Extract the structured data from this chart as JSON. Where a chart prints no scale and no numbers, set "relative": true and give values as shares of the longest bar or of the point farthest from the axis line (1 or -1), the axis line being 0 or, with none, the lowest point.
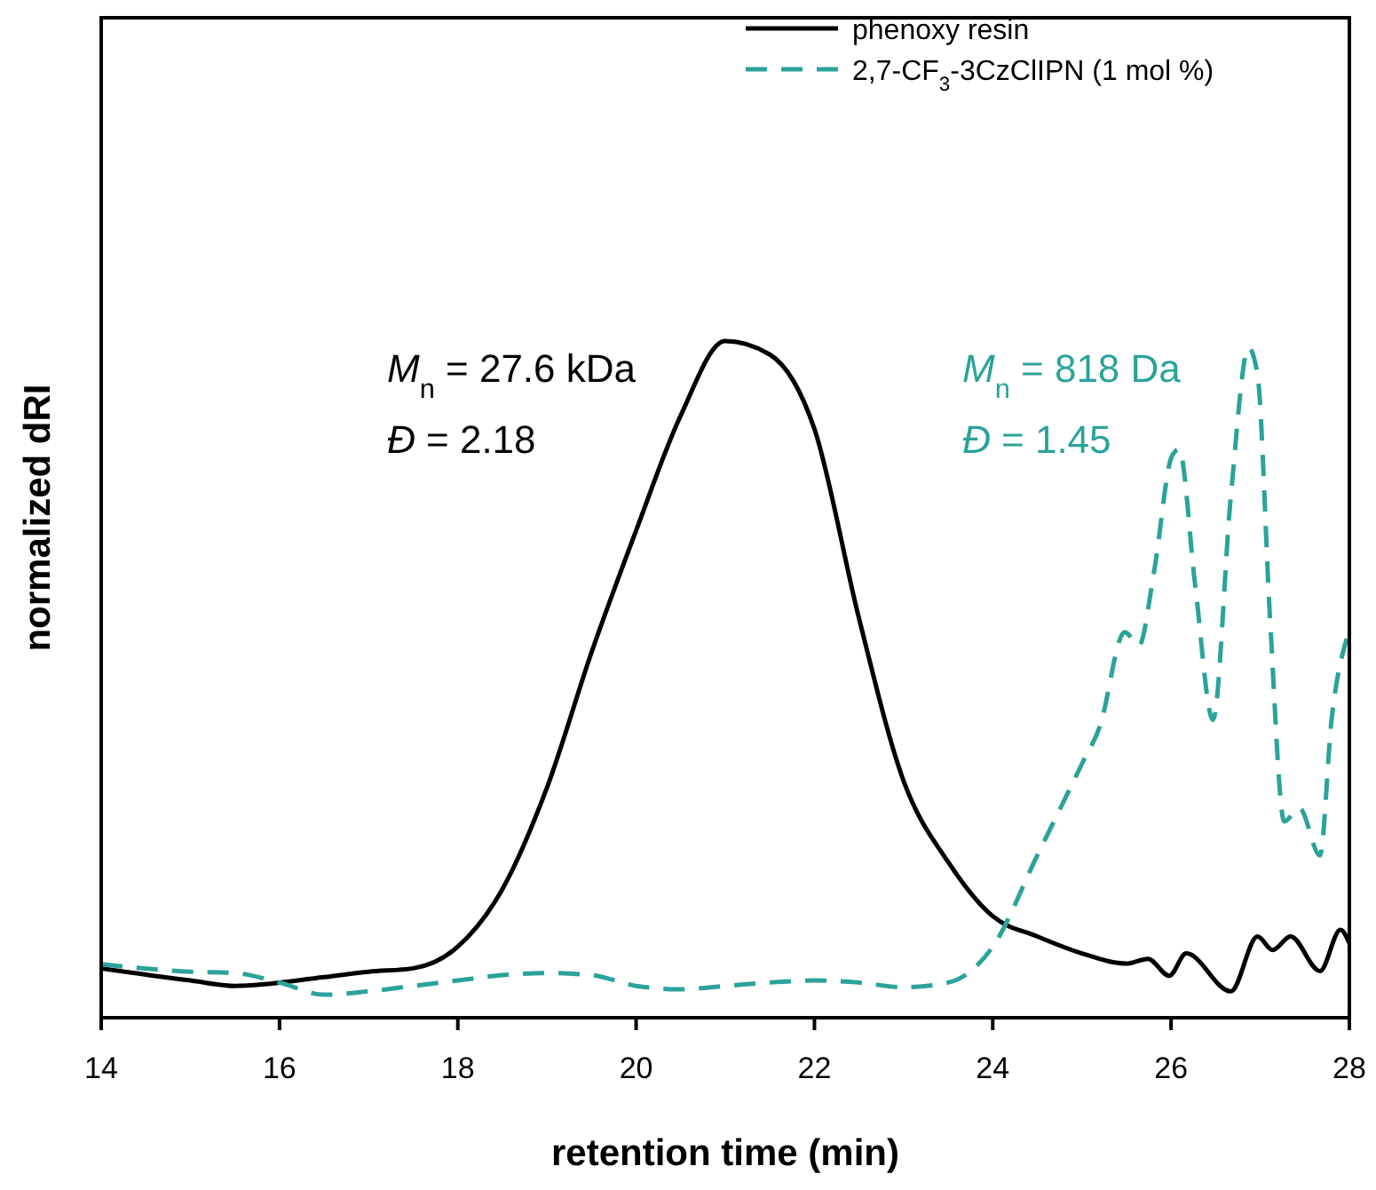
{
  "chart_data": {
    "type": "line",
    "relative": true,
    "xlabel": "retention time (min)",
    "ylabel": "normalized dRI",
    "xlim": [
      14,
      28
    ],
    "xticks": [
      14,
      16,
      18,
      20,
      22,
      24,
      26,
      28
    ],
    "grid": false,
    "legend": "top right",
    "marker": "none",
    "annotations": [
      "M$_{n}$ = 27.6 kDa",
      "Đ = 2.18",
      "M$_{n}$ = 818 Da",
      "Đ = 1.45"
    ],
    "series": [
      {
        "name": "phenoxy resin",
        "color": "#000000",
        "line_style": "solid",
        "x": [
          14,
          15,
          15.5,
          16.5,
          17,
          17.5,
          18,
          18.5,
          19,
          19.5,
          20,
          20.5,
          21,
          21.5,
          22,
          22.5,
          23,
          23.5,
          24,
          24.5,
          25,
          25.5,
          25.74,
          25.98,
          26.17,
          26.67,
          26.97,
          27.14,
          27.34,
          27.67,
          27.9,
          28
        ],
        "values": [
          0.073,
          0.055,
          0.047,
          0.06,
          0.068,
          0.073,
          0.105,
          0.19,
          0.34,
          0.54,
          0.72,
          0.89,
          1.0,
          0.98,
          0.87,
          0.59,
          0.35,
          0.23,
          0.15,
          0.12,
          0.095,
          0.08,
          0.087,
          0.062,
          0.095,
          0.039,
          0.12,
          0.1,
          0.12,
          0.069,
          0.13,
          0.11
        ]
      },
      {
        "name": "2,7-CF$_{3}$-3CzClIPN (1 mol %)",
        "color": "#2aa39a",
        "line_style": "dashed",
        "x": [
          14,
          15,
          15.5,
          16,
          16.5,
          17,
          17.5,
          18,
          18.5,
          19,
          19.5,
          20,
          20.5,
          21,
          21.5,
          22,
          22.5,
          23,
          23.5,
          24,
          24.5,
          25,
          25.2,
          25.48,
          25.64,
          25.81,
          26.01,
          26.09,
          26.27,
          26.47,
          26.67,
          26.87,
          26.97,
          27.11,
          27.27,
          27.44,
          27.67,
          27.8,
          27.97
        ],
        "values": [
          0.079,
          0.068,
          0.066,
          0.052,
          0.034,
          0.039,
          0.047,
          0.055,
          0.063,
          0.066,
          0.063,
          0.047,
          0.042,
          0.047,
          0.052,
          0.055,
          0.052,
          0.045,
          0.052,
          0.105,
          0.24,
          0.375,
          0.43,
          0.57,
          0.55,
          0.66,
          0.83,
          0.84,
          0.64,
          0.44,
          0.77,
          0.99,
          0.95,
          0.59,
          0.29,
          0.31,
          0.24,
          0.44,
          0.56
        ]
      }
    ]
  }
}
